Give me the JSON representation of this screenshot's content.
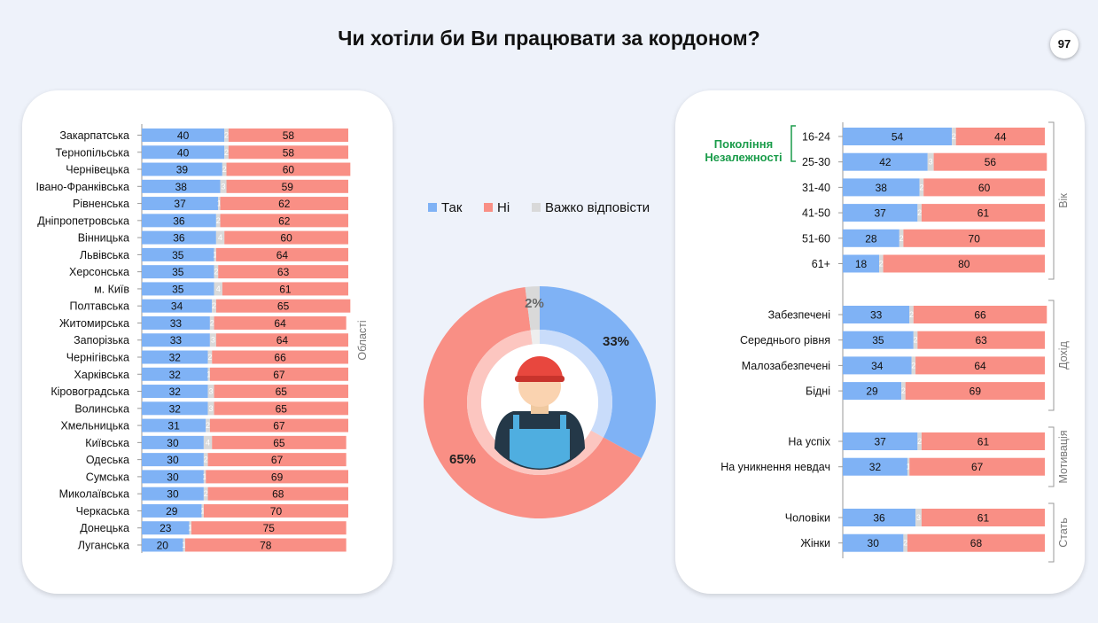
{
  "page": {
    "title": "Чи хотіли би Ви працювати за кордоном?",
    "page_number": "97"
  },
  "colors": {
    "yes": "#7fb2f5",
    "no": "#f98f85",
    "hard": "#d9d9d9",
    "generation": "#1a9c4a",
    "side_label": "#777777"
  },
  "legend": [
    {
      "label": "Так",
      "color": "#7fb2f5"
    },
    {
      "label": "Ні",
      "color": "#f98f85"
    },
    {
      "label": "Важко відповісти",
      "color": "#d9d9d9"
    }
  ],
  "chart_data": [
    {
      "type": "bar",
      "stacked": true,
      "orientation": "horizontal",
      "side_label": "Області",
      "categories": [
        "Закарпатська",
        "Тернопільська",
        "Чернівецька",
        "Івано-Франківська",
        "Рівненська",
        "Дніпропетровська",
        "Вінницька",
        "Львівська",
        "Херсонська",
        "м. Київ",
        "Полтавська",
        "Житомирська",
        "Запорізька",
        "Чернігівська",
        "Харківська",
        "Кіровоградська",
        "Волинська",
        "Хмельницька",
        "Київська",
        "Одеська",
        "Сумська",
        "Миколаївська",
        "Черкаська",
        "Донецька",
        "Луганська"
      ],
      "series": [
        {
          "name": "Так",
          "values": [
            40,
            40,
            39,
            38,
            37,
            36,
            36,
            35,
            35,
            35,
            34,
            33,
            33,
            32,
            32,
            32,
            32,
            31,
            30,
            30,
            30,
            30,
            29,
            23,
            20
          ]
        },
        {
          "name": "Важко відповісти",
          "values": [
            2,
            2,
            2,
            3,
            1,
            2,
            4,
            1,
            2,
            4,
            2,
            2,
            3,
            2,
            1,
            3,
            3,
            2,
            4,
            2,
            1,
            2,
            1,
            1,
            1
          ]
        },
        {
          "name": "Ні",
          "values": [
            58,
            58,
            60,
            59,
            62,
            62,
            60,
            64,
            63,
            61,
            65,
            64,
            64,
            66,
            67,
            65,
            65,
            67,
            65,
            67,
            69,
            68,
            70,
            75,
            78
          ]
        }
      ]
    },
    {
      "type": "pie",
      "categories": [
        "Так",
        "Ні",
        "Важко відповісти"
      ],
      "values": [
        33,
        65,
        2
      ],
      "labels": [
        "33%",
        "65%",
        "2%"
      ]
    },
    {
      "type": "bar",
      "stacked": true,
      "orientation": "horizontal",
      "generation_label": [
        "Покоління",
        "Незалежності"
      ],
      "groups": [
        {
          "name": "Вік",
          "rows": [
            {
              "label": "16-24",
              "values": [
                54,
                2,
                44
              ]
            },
            {
              "label": "25-30",
              "values": [
                42,
                3,
                56
              ]
            },
            {
              "label": "31-40",
              "values": [
                38,
                2,
                60
              ]
            },
            {
              "label": "41-50",
              "values": [
                37,
                2,
                61
              ]
            },
            {
              "label": "51-60",
              "values": [
                28,
                2,
                70
              ]
            },
            {
              "label": "61+",
              "values": [
                18,
                2,
                80
              ]
            }
          ]
        },
        {
          "name": "Дохід",
          "rows": [
            {
              "label": "Забезпечені",
              "values": [
                33,
                2,
                66
              ]
            },
            {
              "label": "Середнього рівня",
              "values": [
                35,
                2,
                63
              ]
            },
            {
              "label": "Малозабезпечені",
              "values": [
                34,
                2,
                64
              ]
            },
            {
              "label": "Бідні",
              "values": [
                29,
                2,
                69
              ]
            }
          ]
        },
        {
          "name": "Мотивація",
          "rows": [
            {
              "label": "На успіх",
              "values": [
                37,
                2,
                61
              ]
            },
            {
              "label": "На уникнення невдач",
              "values": [
                32,
                1,
                67
              ]
            }
          ]
        },
        {
          "name": "Стать",
          "rows": [
            {
              "label": "Чоловіки",
              "values": [
                36,
                3,
                61
              ]
            },
            {
              "label": "Жінки",
              "values": [
                30,
                2,
                68
              ]
            }
          ]
        }
      ],
      "series_order": [
        "Так",
        "Важко відповісти",
        "Ні"
      ]
    }
  ]
}
